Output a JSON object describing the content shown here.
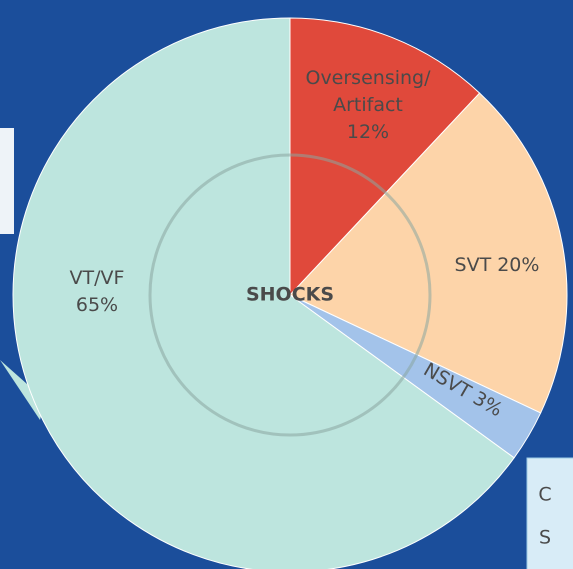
{
  "chart_data": {
    "type": "pie",
    "center_label": "SHOCKS",
    "categories": [
      "Oversensing/ Artifact",
      "SVT",
      "NSVT",
      "VT/VF"
    ],
    "values": [
      12,
      20,
      3,
      65
    ],
    "value_labels": [
      "12%",
      "20%",
      "3%",
      "65%"
    ],
    "colors": [
      "#e0493b",
      "#fdd4a9",
      "#a3c3ea",
      "#bde5de"
    ],
    "annotations": [
      "C",
      "S"
    ]
  }
}
